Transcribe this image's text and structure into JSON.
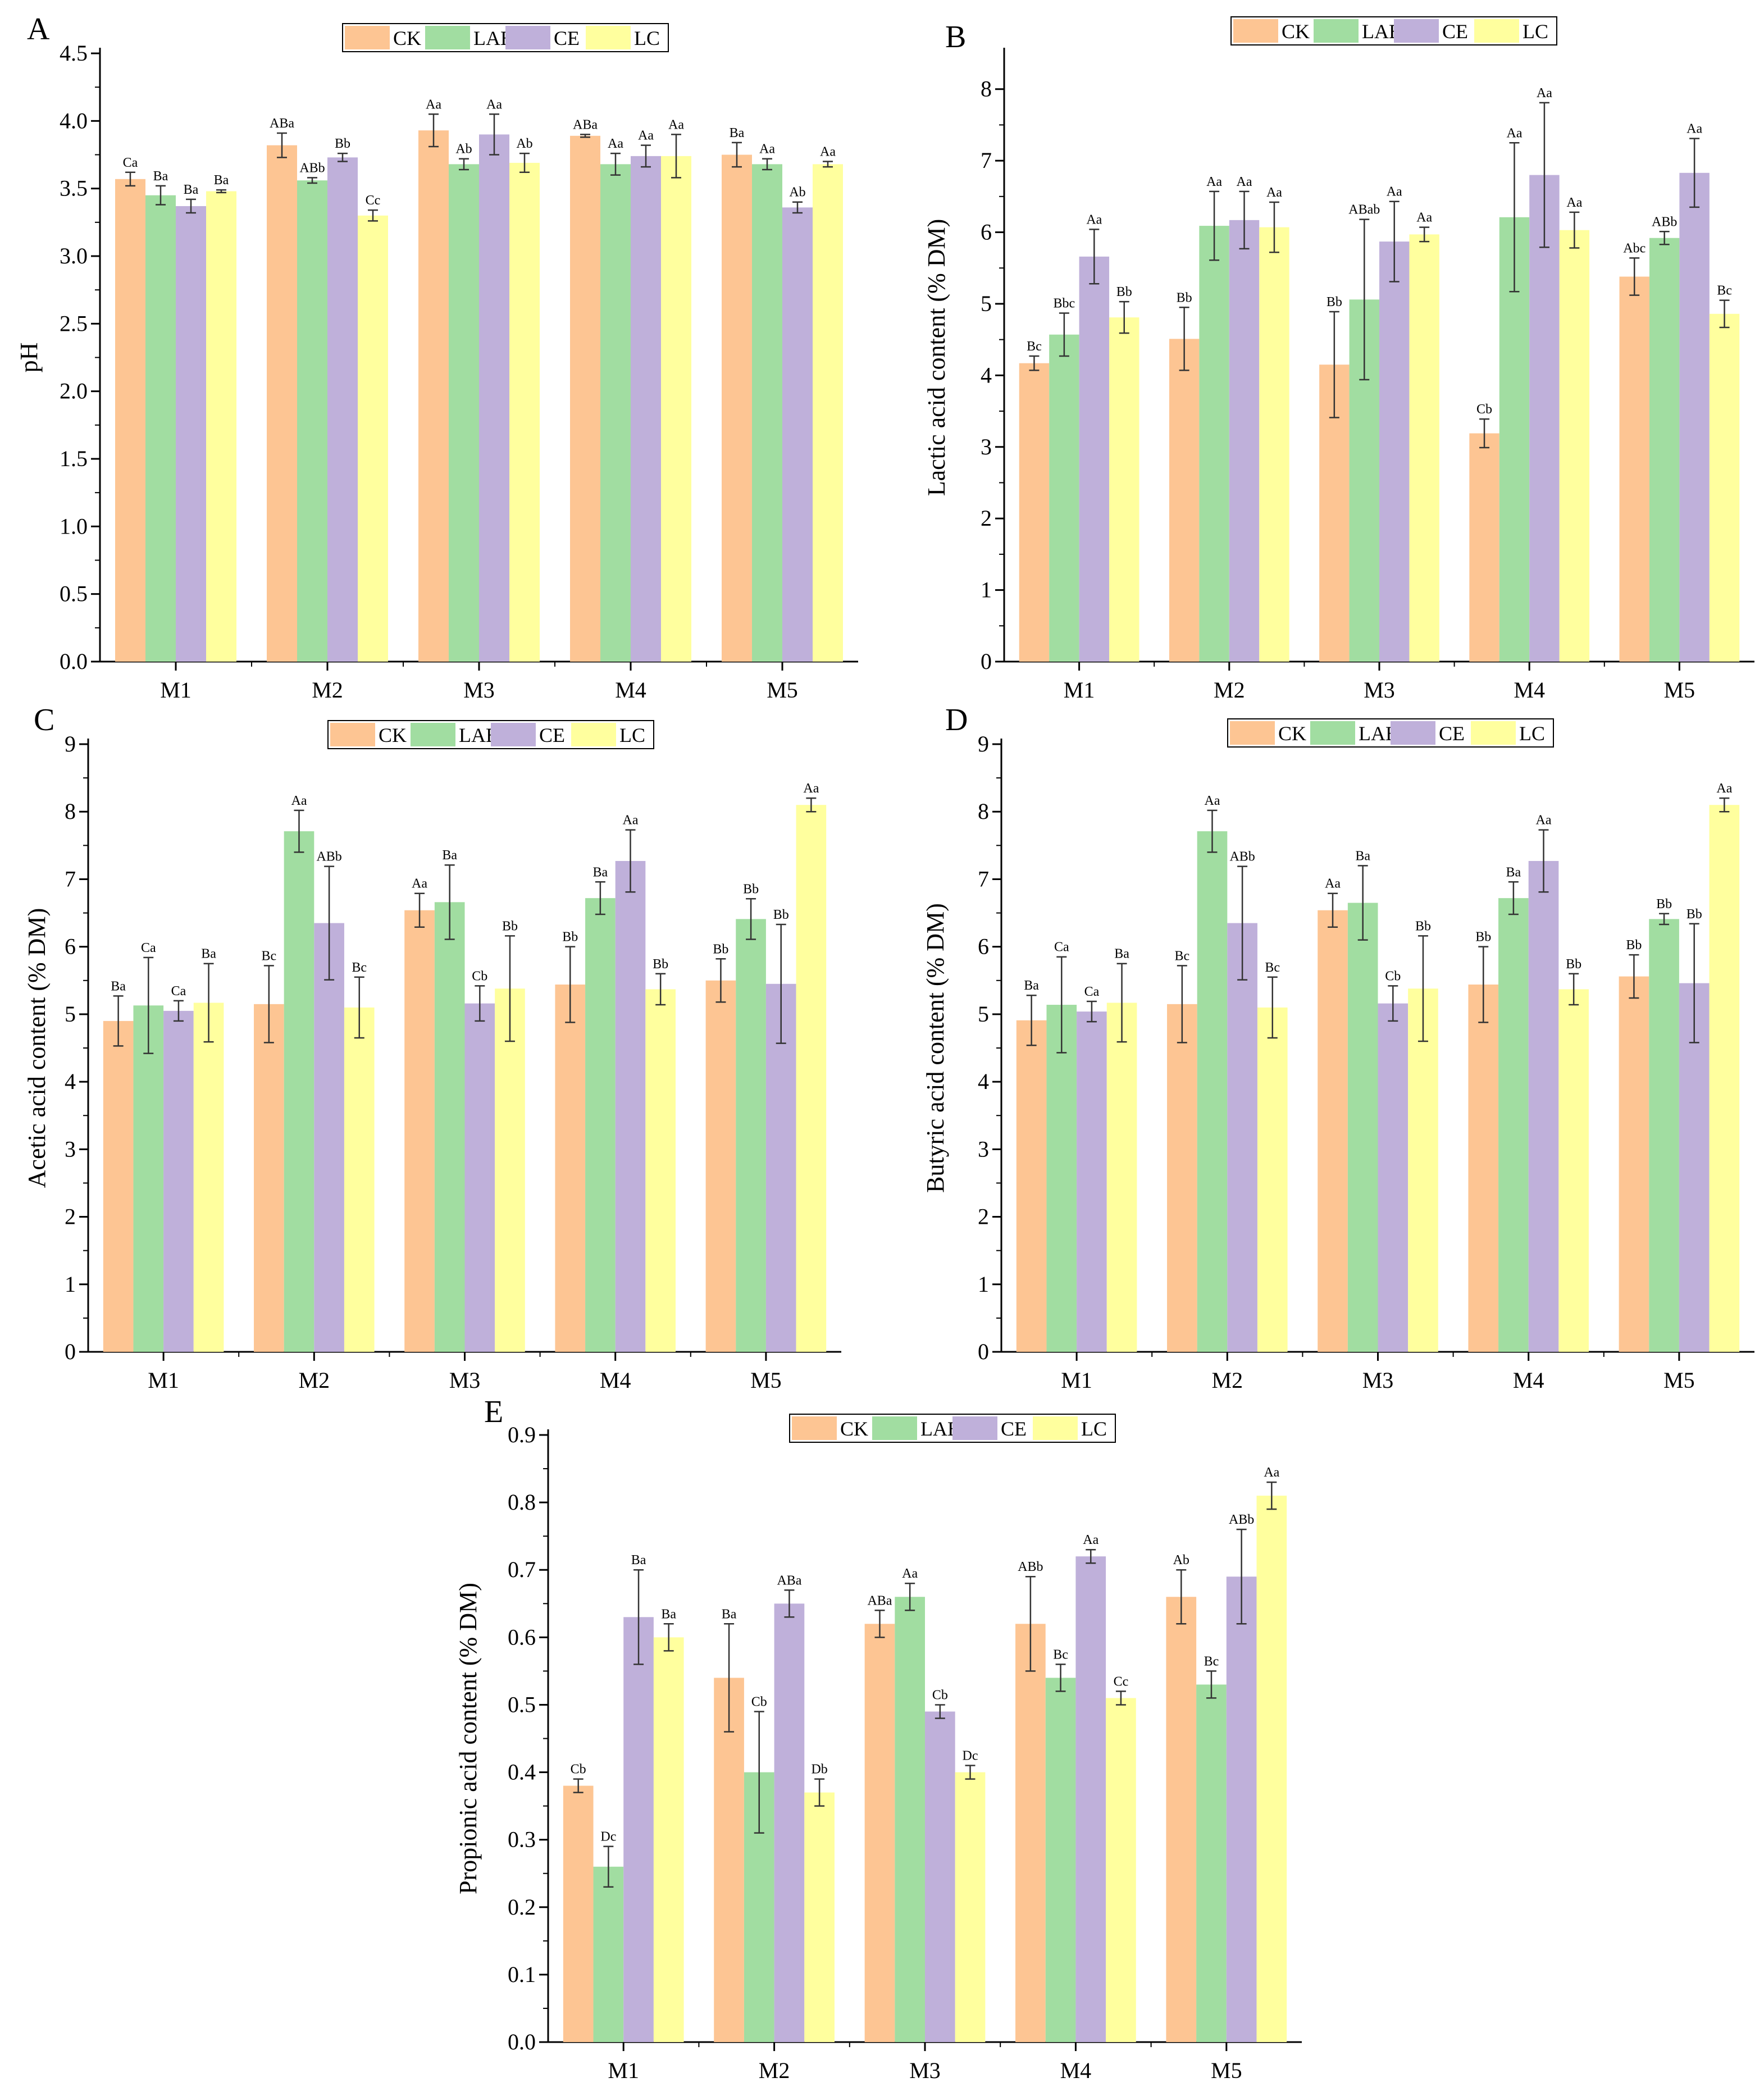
{
  "series_colors": {
    "CK": "#FDC593",
    "LAB": "#A1DDA1",
    "CE": "#BFB0DA",
    "LC": "#FFFF9E"
  },
  "chart_data": [
    {
      "id": "A",
      "type": "bar",
      "panel_label": "A",
      "ylabel": "pH",
      "xlabel": "",
      "categories": [
        "M1",
        "M2",
        "M3",
        "M4",
        "M5"
      ],
      "ylim": [
        0,
        4.5
      ],
      "yticks": [
        "0.0",
        "0.5",
        "1.0",
        "1.5",
        "2.0",
        "2.5",
        "3.0",
        "3.5",
        "4.0",
        "4.5"
      ],
      "legend_position": "top-center",
      "series": [
        {
          "name": "CK",
          "values": [
            3.57,
            3.82,
            3.93,
            3.89,
            3.75
          ],
          "errors": [
            0.05,
            0.09,
            0.12,
            0.01,
            0.09
          ],
          "labels": [
            "Ca",
            "ABa",
            "Aa",
            "ABa",
            "Ba"
          ]
        },
        {
          "name": "LAB",
          "values": [
            3.45,
            3.56,
            3.68,
            3.68,
            3.68
          ],
          "errors": [
            0.07,
            0.02,
            0.04,
            0.08,
            0.04
          ],
          "labels": [
            "Ba",
            "ABb",
            "Ab",
            "Aa",
            "Aa"
          ]
        },
        {
          "name": "CE",
          "values": [
            3.37,
            3.73,
            3.9,
            3.74,
            3.36
          ],
          "errors": [
            0.05,
            0.03,
            0.15,
            0.08,
            0.04
          ],
          "labels": [
            "Ba",
            "Bb",
            "Aa",
            "Aa",
            "Ab"
          ]
        },
        {
          "name": "LC",
          "values": [
            3.48,
            3.3,
            3.69,
            3.74,
            3.68
          ],
          "errors": [
            0.01,
            0.04,
            0.07,
            0.16,
            0.02
          ],
          "labels": [
            "Ba",
            "Cc",
            "Ab",
            "Aa",
            "Aa"
          ]
        }
      ]
    },
    {
      "id": "B",
      "type": "bar",
      "panel_label": "B",
      "ylabel": "Lactic acid content (% DM)",
      "xlabel": "",
      "categories": [
        "M1",
        "M2",
        "M3",
        "M4",
        "M5"
      ],
      "ylim": [
        0,
        8.5
      ],
      "yticks": [
        "0",
        "1",
        "2",
        "3",
        "4",
        "5",
        "6",
        "7",
        "8"
      ],
      "legend_position": "top-center",
      "series": [
        {
          "name": "CK",
          "values": [
            4.17,
            4.51,
            4.15,
            3.19,
            5.38
          ],
          "errors": [
            0.1,
            0.44,
            0.74,
            0.2,
            0.26
          ],
          "labels": [
            "Bc",
            "Bb",
            "Bb",
            "Cb",
            "Abc"
          ]
        },
        {
          "name": "LAB",
          "values": [
            4.57,
            6.09,
            5.06,
            6.21,
            5.92
          ],
          "errors": [
            0.3,
            0.48,
            1.12,
            1.04,
            0.09
          ],
          "labels": [
            "Bbc",
            "Aa",
            "ABab",
            "Aa",
            "ABb"
          ]
        },
        {
          "name": "CE",
          "values": [
            5.66,
            6.17,
            5.87,
            6.8,
            6.83
          ],
          "errors": [
            0.38,
            0.4,
            0.56,
            1.01,
            0.48
          ],
          "labels": [
            "Aa",
            "Aa",
            "Aa",
            "Aa",
            "Aa"
          ]
        },
        {
          "name": "LC",
          "values": [
            4.81,
            6.07,
            5.97,
            6.03,
            4.86
          ],
          "errors": [
            0.22,
            0.35,
            0.1,
            0.25,
            0.19
          ],
          "labels": [
            "Bb",
            "Aa",
            "Aa",
            "Aa",
            "Bc"
          ]
        }
      ]
    },
    {
      "id": "C",
      "type": "bar",
      "panel_label": "C",
      "ylabel": "Acetic acid content (% DM)",
      "xlabel": "",
      "categories": [
        "M1",
        "M2",
        "M3",
        "M4",
        "M5"
      ],
      "ylim": [
        0,
        9
      ],
      "yticks": [
        "0",
        "1",
        "2",
        "3",
        "4",
        "5",
        "6",
        "7",
        "8",
        "9"
      ],
      "legend_position": "top-center",
      "series": [
        {
          "name": "CK",
          "values": [
            4.9,
            5.15,
            6.54,
            5.44,
            5.5
          ],
          "errors": [
            0.37,
            0.57,
            0.25,
            0.56,
            0.32
          ],
          "labels": [
            "Ba",
            "Bc",
            "Aa",
            "Bb",
            "Bb"
          ]
        },
        {
          "name": "LAB",
          "values": [
            5.13,
            7.71,
            6.66,
            6.72,
            6.41
          ],
          "errors": [
            0.71,
            0.31,
            0.55,
            0.24,
            0.3
          ],
          "labels": [
            "Ca",
            "Aa",
            "Ba",
            "Ba",
            "Bb"
          ]
        },
        {
          "name": "CE",
          "values": [
            5.05,
            6.35,
            5.16,
            7.27,
            5.45
          ],
          "errors": [
            0.15,
            0.84,
            0.26,
            0.46,
            0.88
          ],
          "labels": [
            "Ca",
            "ABb",
            "Cb",
            "Aa",
            "Bb"
          ]
        },
        {
          "name": "LC",
          "values": [
            5.17,
            5.1,
            5.38,
            5.37,
            8.1
          ],
          "errors": [
            0.58,
            0.45,
            0.78,
            0.23,
            0.1
          ],
          "labels": [
            "Ba",
            "Bc",
            "Bb",
            "Bb",
            "Aa"
          ]
        }
      ]
    },
    {
      "id": "D",
      "type": "bar",
      "panel_label": "D",
      "ylabel": "Butyric acid content (% DM)",
      "xlabel": "",
      "categories": [
        "M1",
        "M2",
        "M3",
        "M4",
        "M5"
      ],
      "ylim": [
        0,
        9
      ],
      "yticks": [
        "0",
        "1",
        "2",
        "3",
        "4",
        "5",
        "6",
        "7",
        "8",
        "9"
      ],
      "legend_position": "top-center",
      "series": [
        {
          "name": "CK",
          "values": [
            4.91,
            5.15,
            6.54,
            5.44,
            5.56
          ],
          "errors": [
            0.37,
            0.57,
            0.25,
            0.56,
            0.32
          ],
          "labels": [
            "Ba",
            "Bc",
            "Aa",
            "Bb",
            "Bb"
          ]
        },
        {
          "name": "LAB",
          "values": [
            5.14,
            7.71,
            6.65,
            6.72,
            6.41
          ],
          "errors": [
            0.71,
            0.31,
            0.55,
            0.24,
            0.08
          ],
          "labels": [
            "Ca",
            "Aa",
            "Ba",
            "Ba",
            "Bb"
          ]
        },
        {
          "name": "CE",
          "values": [
            5.04,
            6.35,
            5.16,
            7.27,
            5.46
          ],
          "errors": [
            0.15,
            0.84,
            0.26,
            0.46,
            0.88
          ],
          "labels": [
            "Ca",
            "ABb",
            "Cb",
            "Aa",
            "Bb"
          ]
        },
        {
          "name": "LC",
          "values": [
            5.17,
            5.1,
            5.38,
            5.37,
            8.1
          ],
          "errors": [
            0.58,
            0.45,
            0.78,
            0.23,
            0.1
          ],
          "labels": [
            "Ba",
            "Bc",
            "Bb",
            "Bb",
            "Aa"
          ]
        }
      ]
    },
    {
      "id": "E",
      "type": "bar",
      "panel_label": "E",
      "ylabel": "Propionic acid content (% DM)",
      "xlabel": "",
      "categories": [
        "M1",
        "M2",
        "M3",
        "M4",
        "M5"
      ],
      "ylim": [
        0,
        0.9
      ],
      "yticks": [
        "0.0",
        "0.1",
        "0.2",
        "0.3",
        "0.4",
        "0.5",
        "0.6",
        "0.7",
        "0.8",
        "0.9"
      ],
      "legend_position": "top-center",
      "series": [
        {
          "name": "CK",
          "values": [
            0.38,
            0.54,
            0.62,
            0.62,
            0.66
          ],
          "errors": [
            0.01,
            0.08,
            0.02,
            0.07,
            0.04
          ],
          "labels": [
            "Cb",
            "Ba",
            "ABa",
            "ABb",
            "Ab"
          ]
        },
        {
          "name": "LAB",
          "values": [
            0.26,
            0.4,
            0.66,
            0.54,
            0.53
          ],
          "errors": [
            0.03,
            0.09,
            0.02,
            0.02,
            0.02
          ],
          "labels": [
            "Dc",
            "Cb",
            "Aa",
            "Bc",
            "Bc"
          ]
        },
        {
          "name": "CE",
          "values": [
            0.63,
            0.65,
            0.49,
            0.72,
            0.69
          ],
          "errors": [
            0.07,
            0.02,
            0.01,
            0.01,
            0.07
          ],
          "labels": [
            "Ba",
            "ABa",
            "Cb",
            "Aa",
            "ABb"
          ]
        },
        {
          "name": "LC",
          "values": [
            0.6,
            0.37,
            0.4,
            0.51,
            0.81
          ],
          "errors": [
            0.02,
            0.02,
            0.01,
            0.01,
            0.02
          ],
          "labels": [
            "Ba",
            "Db",
            "Dc",
            "Cc",
            "Aa"
          ]
        }
      ]
    }
  ]
}
